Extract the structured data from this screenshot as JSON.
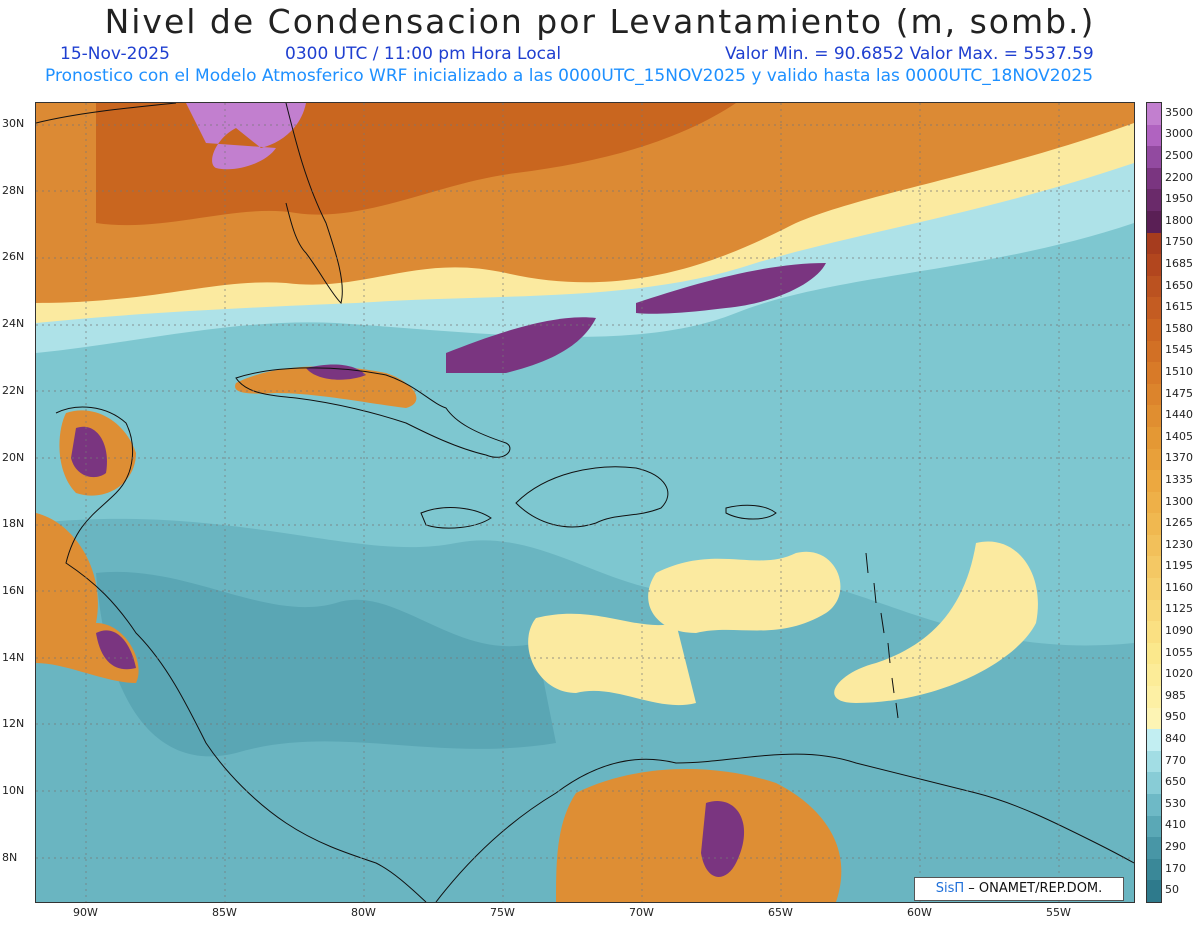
{
  "title": "Nivel de Condensacion por Levantamiento (m, somb.)",
  "date": "15-Nov-2025",
  "time": "0300 UTC / 11:00 pm Hora Local",
  "range": "Valor Min. = 90.6852   Valor Max. = 5537.59",
  "forecast_note": "Pronostico con el Modelo Atmosferico WRF inicializado a las 0000UTC_15NOV2025 y valido hasta las  0000UTC_18NOV2025",
  "credit": {
    "brand": "SisΠ",
    "text": " – ONAMET/REP.DOM."
  },
  "lat_labels": [
    "30N",
    "28N",
    "26N",
    "24N",
    "22N",
    "20N",
    "18N",
    "16N",
    "14N",
    "12N",
    "10N",
    "8N"
  ],
  "lon_labels": [
    "90W",
    "85W",
    "80W",
    "75W",
    "70W",
    "65W",
    "60W",
    "55W"
  ],
  "colorbar": {
    "labels": [
      "3500",
      "3000",
      "2500",
      "2200",
      "1950",
      "1800",
      "1750",
      "1685",
      "1650",
      "1615",
      "1580",
      "1545",
      "1510",
      "1475",
      "1440",
      "1405",
      "1370",
      "1335",
      "1300",
      "1265",
      "1230",
      "1195",
      "1160",
      "1125",
      "1090",
      "1055",
      "1020",
      "985",
      "950",
      "840",
      "770",
      "650",
      "530",
      "410",
      "290",
      "170",
      "50"
    ],
    "colors": [
      "#c27fcf",
      "#b063c0",
      "#924aa0",
      "#7a3580",
      "#6a2a6a",
      "#5a1f55",
      "#a63c1e",
      "#b2461e",
      "#bb5220",
      "#c45c22",
      "#cc6622",
      "#d27025",
      "#d87a28",
      "#dc842c",
      "#e08e30",
      "#e49834",
      "#e8a03a",
      "#eca840",
      "#eeb048",
      "#f0b850",
      "#f2c05a",
      "#f4c864",
      "#f6d06e",
      "#f8d878",
      "#fae082",
      "#fbe88c",
      "#fcec98",
      "#fdf0a4",
      "#fdf4b4",
      "#c2eef2",
      "#a2dde4",
      "#88ccd6",
      "#6eb9c6",
      "#5aa8b6",
      "#4896a6",
      "#3a8898",
      "#2e7a8c"
    ]
  }
}
